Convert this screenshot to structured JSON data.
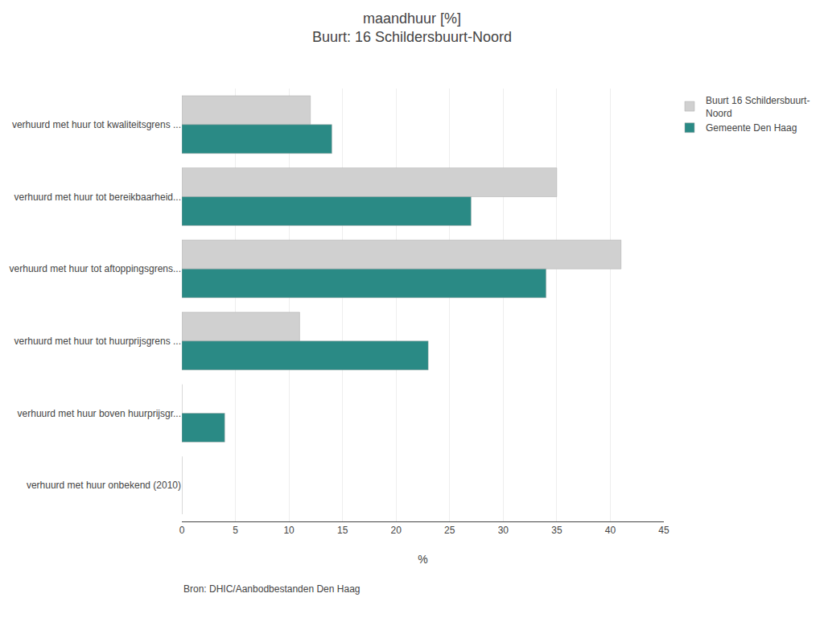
{
  "chart_data": {
    "type": "bar",
    "orientation": "horizontal",
    "title": "maandhuur [%]",
    "subtitle": "Buurt: 16 Schildersbuurt-Noord",
    "categories": [
      "verhuurd met huur tot kwaliteitsgrens ...",
      "verhuurd met huur tot bereikbaarheid...",
      "verhuurd met huur tot aftoppingsgrens...",
      "verhuurd met huur tot huurprijsgrens ...",
      "verhuurd met huur boven huurprijsgr...",
      "verhuurd met huur onbekend (2010)"
    ],
    "series": [
      {
        "name": "Buurt 16 Schildersbuurt-\nNoord",
        "color": "#d0d0d0",
        "values": [
          12,
          35,
          41,
          11,
          0,
          0
        ]
      },
      {
        "name": "Gemeente Den Haag",
        "color": "#2a8a85",
        "values": [
          14,
          27,
          34,
          23,
          4,
          0
        ]
      }
    ],
    "xlabel": "%",
    "xlim": [
      0,
      45
    ],
    "xticks": [
      0,
      5,
      10,
      15,
      20,
      25,
      30,
      35,
      40,
      45
    ],
    "grid": true,
    "legend": "right",
    "annotations": [
      "Bron: DHIC/Aanbodbestanden Den Haag"
    ]
  }
}
